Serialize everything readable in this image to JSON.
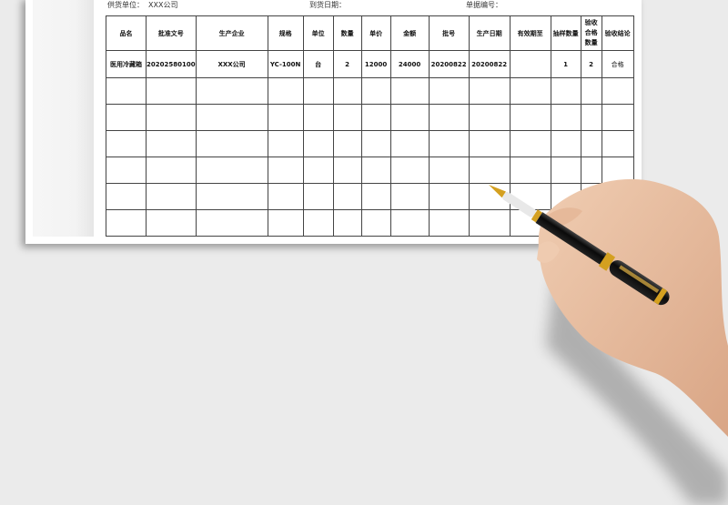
{
  "header": {
    "supplier_label": "供货单位：",
    "supplier_value": "XXX公司",
    "arrival_date_label": "到货日期：",
    "document_no_label": "单据编号："
  },
  "table": {
    "columns": [
      "品名",
      "批准文号",
      "生产企业",
      "规格",
      "单位",
      "数量",
      "单价",
      "金额",
      "批号",
      "生产日期",
      "有效期至",
      "抽样数量",
      "验收合格数量",
      "验收结论"
    ],
    "rows": [
      [
        "医用冷藏箱",
        "20202580100",
        "XXX公司",
        "YC-100N",
        "台",
        "2",
        "12000",
        "24000",
        "20200822",
        "20200822",
        "",
        "1",
        "2",
        "合格"
      ],
      [
        "",
        "",
        "",
        "",
        "",
        "",
        "",
        "",
        "",
        "",
        "",
        "",
        "",
        ""
      ],
      [
        "",
        "",
        "",
        "",
        "",
        "",
        "",
        "",
        "",
        "",
        "",
        "",
        "",
        ""
      ],
      [
        "",
        "",
        "",
        "",
        "",
        "",
        "",
        "",
        "",
        "",
        "",
        "",
        "",
        ""
      ],
      [
        "",
        "",
        "",
        "",
        "",
        "",
        "",
        "",
        "",
        "",
        "",
        "",
        "",
        ""
      ],
      [
        "",
        "",
        "",
        "",
        "",
        "",
        "",
        "",
        "",
        "",
        "",
        "",
        "",
        ""
      ],
      [
        "",
        "",
        "",
        "",
        "",
        "",
        "",
        "",
        "",
        "",
        "",
        "",
        "",
        ""
      ]
    ]
  },
  "decor": {
    "illustration": "hand-holding-fountain-pen",
    "pen_color": "#111111",
    "trim_color": "#d4a020",
    "skin_color": "#e9bfa0"
  }
}
